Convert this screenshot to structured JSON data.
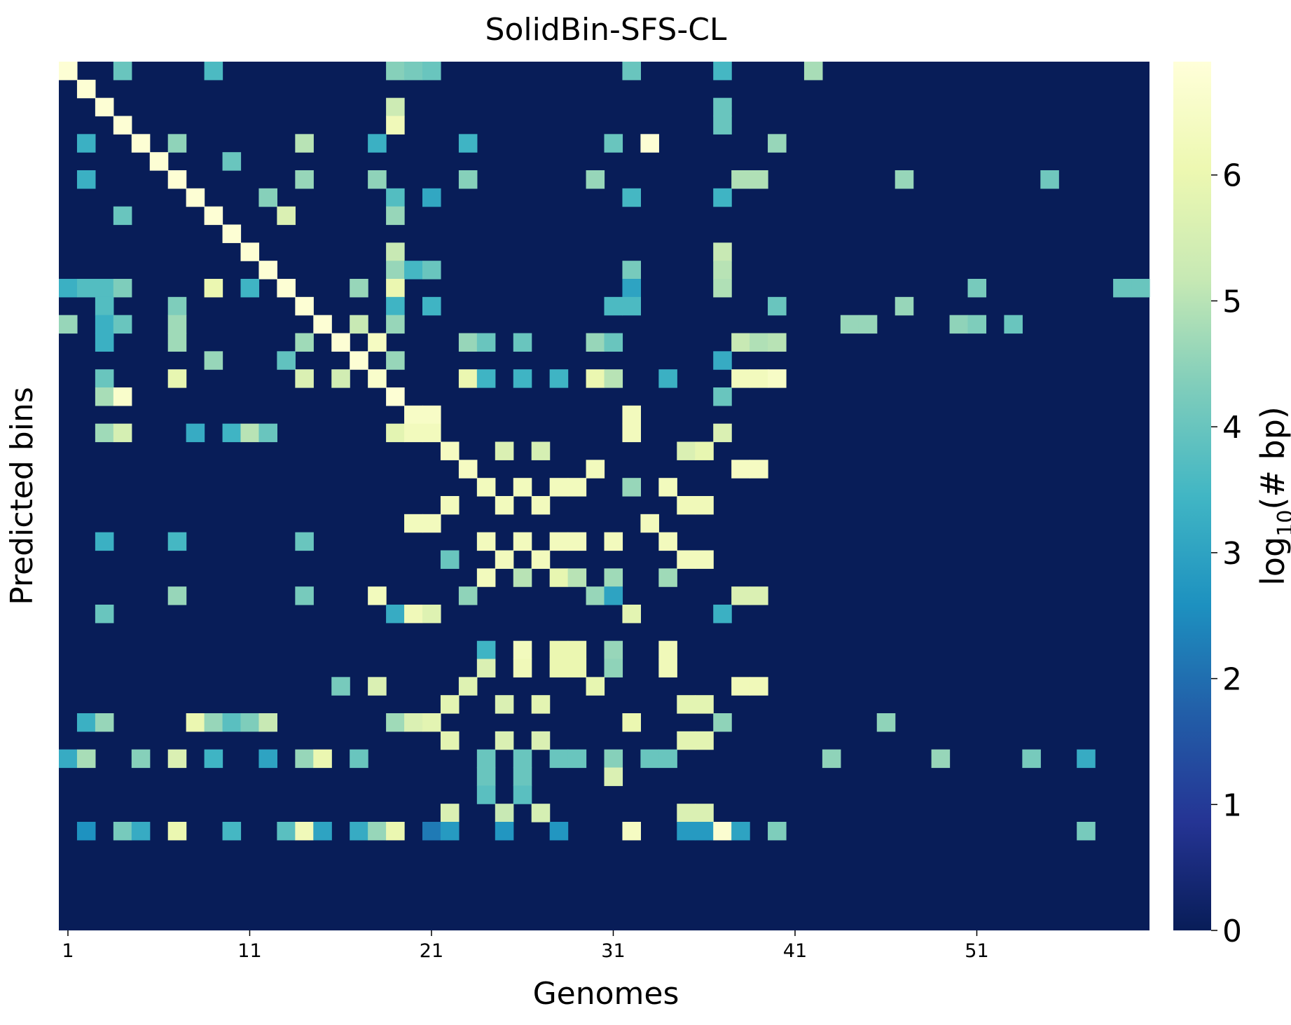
{
  "chart_data": {
    "type": "heatmap",
    "title": "SolidBin-SFS-CL",
    "xlabel": "Genomes",
    "ylabel": "Predicted bins",
    "colorbar_label": "log₁₀(# bp)",
    "colorbar_label_base": "log",
    "colorbar_label_sub": "10",
    "colorbar_label_rest": "(# bp)",
    "colormap": "YlGnBu_r",
    "vmin": 0,
    "vmax": 6.9,
    "colorbar_ticks": [
      "0",
      "1",
      "2",
      "3",
      "4",
      "5",
      "6"
    ],
    "n_cols": 60,
    "n_rows": 48,
    "x_tick_labels": [
      "1",
      "11",
      "21",
      "31",
      "41",
      "51"
    ],
    "x_tick_columns": [
      1,
      11,
      21,
      31,
      41,
      51
    ],
    "colormap_stops": [
      "#081d58",
      "#253494",
      "#225ea8",
      "#1d91c0",
      "#41b6c4",
      "#7fcdbb",
      "#c7e9b4",
      "#edf8b1",
      "#ffffd9"
    ],
    "cells": [
      [
        1,
        1,
        6.8
      ],
      [
        1,
        4,
        4.0
      ],
      [
        1,
        9,
        3.6
      ],
      [
        1,
        19,
        4.4
      ],
      [
        1,
        20,
        4.2
      ],
      [
        1,
        21,
        4.0
      ],
      [
        1,
        32,
        4.0
      ],
      [
        1,
        37,
        3.5
      ],
      [
        1,
        42,
        4.8
      ],
      [
        2,
        2,
        6.8
      ],
      [
        3,
        3,
        6.8
      ],
      [
        3,
        19,
        5.3
      ],
      [
        3,
        37,
        4.0
      ],
      [
        4,
        4,
        6.8
      ],
      [
        4,
        19,
        6.2
      ],
      [
        4,
        37,
        4.0
      ],
      [
        5,
        2,
        3.3
      ],
      [
        5,
        5,
        6.8
      ],
      [
        5,
        7,
        4.5
      ],
      [
        5,
        14,
        5.0
      ],
      [
        5,
        18,
        3.3
      ],
      [
        5,
        23,
        3.4
      ],
      [
        5,
        31,
        4.0
      ],
      [
        5,
        33,
        6.8
      ],
      [
        5,
        40,
        4.6
      ],
      [
        6,
        6,
        6.8
      ],
      [
        6,
        10,
        4.0
      ],
      [
        7,
        2,
        3.3
      ],
      [
        7,
        7,
        6.8
      ],
      [
        7,
        14,
        4.6
      ],
      [
        7,
        18,
        4.5
      ],
      [
        7,
        23,
        4.4
      ],
      [
        7,
        30,
        4.6
      ],
      [
        7,
        38,
        4.9
      ],
      [
        7,
        39,
        4.9
      ],
      [
        7,
        47,
        4.6
      ],
      [
        7,
        55,
        4.1
      ],
      [
        8,
        8,
        6.8
      ],
      [
        8,
        12,
        4.4
      ],
      [
        8,
        19,
        3.7
      ],
      [
        8,
        21,
        3.1
      ],
      [
        8,
        32,
        3.5
      ],
      [
        8,
        37,
        3.4
      ],
      [
        9,
        4,
        4.0
      ],
      [
        9,
        9,
        6.8
      ],
      [
        9,
        13,
        5.6
      ],
      [
        9,
        19,
        4.6
      ],
      [
        10,
        10,
        6.8
      ],
      [
        11,
        11,
        6.8
      ],
      [
        11,
        19,
        5.2
      ],
      [
        11,
        37,
        5.2
      ],
      [
        12,
        12,
        6.8
      ],
      [
        12,
        19,
        4.6
      ],
      [
        12,
        20,
        3.5
      ],
      [
        12,
        21,
        4.0
      ],
      [
        12,
        32,
        4.2
      ],
      [
        12,
        37,
        5.0
      ],
      [
        13,
        1,
        3.3
      ],
      [
        13,
        2,
        3.7
      ],
      [
        13,
        3,
        3.7
      ],
      [
        13,
        4,
        4.3
      ],
      [
        13,
        9,
        6.0
      ],
      [
        13,
        11,
        3.4
      ],
      [
        13,
        13,
        6.8
      ],
      [
        13,
        17,
        4.6
      ],
      [
        13,
        19,
        6.0
      ],
      [
        13,
        32,
        3.0
      ],
      [
        13,
        37,
        4.9
      ],
      [
        13,
        51,
        4.2
      ],
      [
        13,
        59,
        4.0
      ],
      [
        13,
        60,
        4.0
      ],
      [
        14,
        3,
        3.7
      ],
      [
        14,
        7,
        4.3
      ],
      [
        14,
        14,
        6.8
      ],
      [
        14,
        19,
        3.4
      ],
      [
        14,
        21,
        3.4
      ],
      [
        14,
        31,
        3.6
      ],
      [
        14,
        32,
        3.6
      ],
      [
        14,
        40,
        4.0
      ],
      [
        14,
        47,
        4.6
      ],
      [
        15,
        1,
        4.6
      ],
      [
        15,
        3,
        3.3
      ],
      [
        15,
        4,
        4.0
      ],
      [
        15,
        7,
        4.7
      ],
      [
        15,
        15,
        6.8
      ],
      [
        15,
        17,
        5.2
      ],
      [
        15,
        19,
        4.6
      ],
      [
        15,
        44,
        4.6
      ],
      [
        15,
        45,
        4.6
      ],
      [
        15,
        50,
        4.5
      ],
      [
        15,
        51,
        4.3
      ],
      [
        15,
        53,
        4.0
      ],
      [
        16,
        3,
        3.3
      ],
      [
        16,
        7,
        4.7
      ],
      [
        16,
        14,
        4.7
      ],
      [
        16,
        16,
        6.8
      ],
      [
        16,
        18,
        6.4
      ],
      [
        16,
        23,
        4.6
      ],
      [
        16,
        24,
        4.0
      ],
      [
        16,
        26,
        4.0
      ],
      [
        16,
        30,
        4.6
      ],
      [
        16,
        31,
        4.0
      ],
      [
        16,
        38,
        5.2
      ],
      [
        16,
        39,
        4.9
      ],
      [
        16,
        40,
        5.0
      ],
      [
        17,
        9,
        4.6
      ],
      [
        17,
        13,
        3.9
      ],
      [
        17,
        17,
        6.8
      ],
      [
        17,
        19,
        4.6
      ],
      [
        17,
        37,
        3.2
      ],
      [
        18,
        3,
        4.0
      ],
      [
        18,
        7,
        5.9
      ],
      [
        18,
        14,
        5.6
      ],
      [
        18,
        16,
        5.4
      ],
      [
        18,
        18,
        6.6
      ],
      [
        18,
        23,
        6.0
      ],
      [
        18,
        24,
        3.4
      ],
      [
        18,
        26,
        3.4
      ],
      [
        18,
        28,
        3.4
      ],
      [
        18,
        30,
        6.0
      ],
      [
        18,
        31,
        5.0
      ],
      [
        18,
        34,
        3.3
      ],
      [
        18,
        38,
        6.3
      ],
      [
        18,
        39,
        6.3
      ],
      [
        18,
        40,
        6.5
      ],
      [
        19,
        3,
        4.8
      ],
      [
        19,
        4,
        6.6
      ],
      [
        19,
        19,
        6.8
      ],
      [
        19,
        37,
        4.0
      ],
      [
        20,
        20,
        6.5
      ],
      [
        20,
        21,
        6.5
      ],
      [
        20,
        32,
        6.3
      ],
      [
        21,
        3,
        4.7
      ],
      [
        21,
        4,
        5.5
      ],
      [
        21,
        8,
        3.2
      ],
      [
        21,
        10,
        3.4
      ],
      [
        21,
        11,
        5.0
      ],
      [
        21,
        12,
        4.0
      ],
      [
        21,
        19,
        5.8
      ],
      [
        21,
        20,
        6.3
      ],
      [
        21,
        21,
        6.3
      ],
      [
        21,
        32,
        6.3
      ],
      [
        21,
        37,
        5.6
      ],
      [
        22,
        22,
        6.4
      ],
      [
        22,
        25,
        5.6
      ],
      [
        22,
        27,
        5.5
      ],
      [
        22,
        35,
        5.6
      ],
      [
        22,
        36,
        5.9
      ],
      [
        23,
        23,
        6.4
      ],
      [
        23,
        30,
        6.3
      ],
      [
        23,
        38,
        6.4
      ],
      [
        23,
        39,
        6.4
      ],
      [
        24,
        24,
        6.3
      ],
      [
        24,
        26,
        6.3
      ],
      [
        24,
        28,
        6.3
      ],
      [
        24,
        29,
        6.3
      ],
      [
        24,
        32,
        4.6
      ],
      [
        24,
        34,
        6.3
      ],
      [
        25,
        22,
        6.3
      ],
      [
        25,
        25,
        6.3
      ],
      [
        25,
        27,
        6.3
      ],
      [
        25,
        35,
        6.2
      ],
      [
        25,
        36,
        6.2
      ],
      [
        26,
        20,
        6.3
      ],
      [
        26,
        21,
        6.3
      ],
      [
        26,
        33,
        6.3
      ],
      [
        27,
        3,
        3.3
      ],
      [
        27,
        7,
        3.5
      ],
      [
        27,
        14,
        4.0
      ],
      [
        27,
        24,
        6.3
      ],
      [
        27,
        26,
        6.3
      ],
      [
        27,
        28,
        6.3
      ],
      [
        27,
        29,
        6.3
      ],
      [
        27,
        31,
        6.3
      ],
      [
        27,
        34,
        6.3
      ],
      [
        28,
        22,
        4.0
      ],
      [
        28,
        25,
        6.3
      ],
      [
        28,
        27,
        6.3
      ],
      [
        28,
        35,
        6.3
      ],
      [
        28,
        36,
        6.3
      ],
      [
        29,
        24,
        6.3
      ],
      [
        29,
        26,
        5.0
      ],
      [
        29,
        28,
        5.9
      ],
      [
        29,
        29,
        5.0
      ],
      [
        29,
        31,
        4.7
      ],
      [
        29,
        34,
        4.7
      ],
      [
        30,
        7,
        4.6
      ],
      [
        30,
        14,
        4.2
      ],
      [
        30,
        18,
        6.3
      ],
      [
        30,
        23,
        4.5
      ],
      [
        30,
        30,
        4.6
      ],
      [
        30,
        31,
        3.0
      ],
      [
        30,
        38,
        5.6
      ],
      [
        30,
        39,
        5.6
      ],
      [
        31,
        3,
        4.0
      ],
      [
        31,
        19,
        3.2
      ],
      [
        31,
        20,
        6.2
      ],
      [
        31,
        21,
        5.7
      ],
      [
        31,
        32,
        5.8
      ],
      [
        31,
        37,
        3.3
      ],
      [
        33,
        24,
        3.4
      ],
      [
        33,
        26,
        6.3
      ],
      [
        33,
        28,
        6.0
      ],
      [
        33,
        29,
        6.0
      ],
      [
        33,
        31,
        4.6
      ],
      [
        33,
        34,
        6.2
      ],
      [
        34,
        24,
        5.6
      ],
      [
        34,
        26,
        6.2
      ],
      [
        34,
        28,
        6.0
      ],
      [
        34,
        29,
        6.0
      ],
      [
        34,
        31,
        4.5
      ],
      [
        34,
        34,
        6.2
      ],
      [
        35,
        16,
        4.2
      ],
      [
        35,
        18,
        5.6
      ],
      [
        35,
        23,
        5.7
      ],
      [
        35,
        30,
        5.9
      ],
      [
        35,
        38,
        6.2
      ],
      [
        35,
        39,
        6.2
      ],
      [
        36,
        22,
        5.8
      ],
      [
        36,
        25,
        5.6
      ],
      [
        36,
        27,
        5.8
      ],
      [
        36,
        35,
        5.8
      ],
      [
        36,
        36,
        5.8
      ],
      [
        37,
        2,
        3.3
      ],
      [
        37,
        3,
        4.6
      ],
      [
        37,
        8,
        6.0
      ],
      [
        37,
        9,
        4.6
      ],
      [
        37,
        10,
        3.8
      ],
      [
        37,
        11,
        4.3
      ],
      [
        37,
        12,
        5.2
      ],
      [
        37,
        19,
        4.7
      ],
      [
        37,
        20,
        5.6
      ],
      [
        37,
        21,
        5.8
      ],
      [
        37,
        32,
        6.0
      ],
      [
        37,
        37,
        4.5
      ],
      [
        37,
        46,
        4.5
      ],
      [
        38,
        22,
        5.8
      ],
      [
        38,
        25,
        5.6
      ],
      [
        38,
        27,
        5.6
      ],
      [
        38,
        35,
        5.8
      ],
      [
        38,
        36,
        5.8
      ],
      [
        39,
        1,
        3.2
      ],
      [
        39,
        2,
        4.8
      ],
      [
        39,
        5,
        4.4
      ],
      [
        39,
        7,
        5.6
      ],
      [
        39,
        9,
        3.4
      ],
      [
        39,
        12,
        3.0
      ],
      [
        39,
        14,
        4.6
      ],
      [
        39,
        15,
        6.0
      ],
      [
        39,
        17,
        4.0
      ],
      [
        39,
        24,
        4.0
      ],
      [
        39,
        26,
        4.0
      ],
      [
        39,
        28,
        4.0
      ],
      [
        39,
        29,
        4.0
      ],
      [
        39,
        31,
        4.4
      ],
      [
        39,
        33,
        4.0
      ],
      [
        39,
        34,
        4.0
      ],
      [
        39,
        43,
        4.5
      ],
      [
        39,
        49,
        4.6
      ],
      [
        39,
        54,
        4.2
      ],
      [
        39,
        57,
        3.2
      ],
      [
        40,
        24,
        4.0
      ],
      [
        40,
        26,
        4.0
      ],
      [
        40,
        31,
        5.6
      ],
      [
        41,
        24,
        3.8
      ],
      [
        41,
        26,
        3.8
      ],
      [
        42,
        22,
        5.6
      ],
      [
        42,
        25,
        5.2
      ],
      [
        42,
        27,
        5.5
      ],
      [
        42,
        35,
        5.6
      ],
      [
        42,
        36,
        5.6
      ],
      [
        43,
        2,
        2.6
      ],
      [
        43,
        4,
        4.2
      ],
      [
        43,
        5,
        3.2
      ],
      [
        43,
        7,
        6.0
      ],
      [
        43,
        10,
        3.5
      ],
      [
        43,
        13,
        3.8
      ],
      [
        43,
        14,
        6.2
      ],
      [
        43,
        15,
        3.0
      ],
      [
        43,
        17,
        3.2
      ],
      [
        43,
        18,
        4.6
      ],
      [
        43,
        19,
        6.0
      ],
      [
        43,
        21,
        2.2
      ],
      [
        43,
        22,
        2.8
      ],
      [
        43,
        25,
        2.7
      ],
      [
        43,
        28,
        2.7
      ],
      [
        43,
        32,
        6.4
      ],
      [
        43,
        35,
        2.8
      ],
      [
        43,
        36,
        2.8
      ],
      [
        43,
        37,
        6.7
      ],
      [
        43,
        38,
        3.0
      ],
      [
        43,
        40,
        4.3
      ],
      [
        43,
        57,
        4.2
      ]
    ]
  }
}
